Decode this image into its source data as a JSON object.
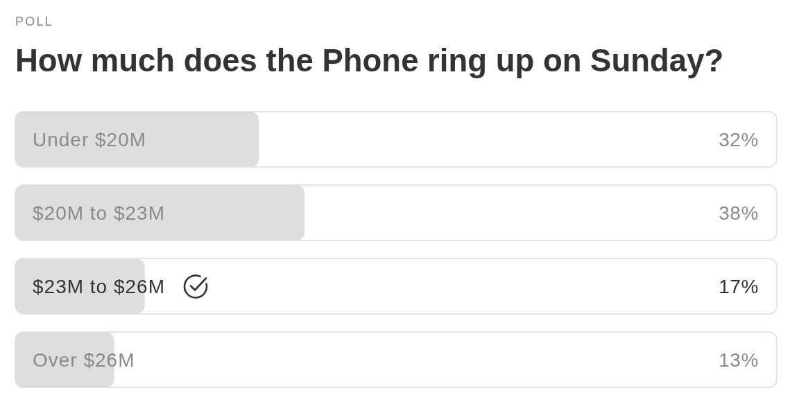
{
  "chart_data": {
    "type": "bar",
    "orientation": "horizontal",
    "subtitle": "POLL",
    "title": "How much does the Phone ring up on Sunday?",
    "categories": [
      "Under $20M",
      "$20M to $23M",
      "$23M to $26M",
      "Over $26M"
    ],
    "values": [
      32,
      38,
      17,
      13
    ],
    "value_labels": [
      "32%",
      "38%",
      "17%",
      "13%"
    ],
    "color": "#dedede",
    "xlim": [
      0,
      100
    ]
  }
}
